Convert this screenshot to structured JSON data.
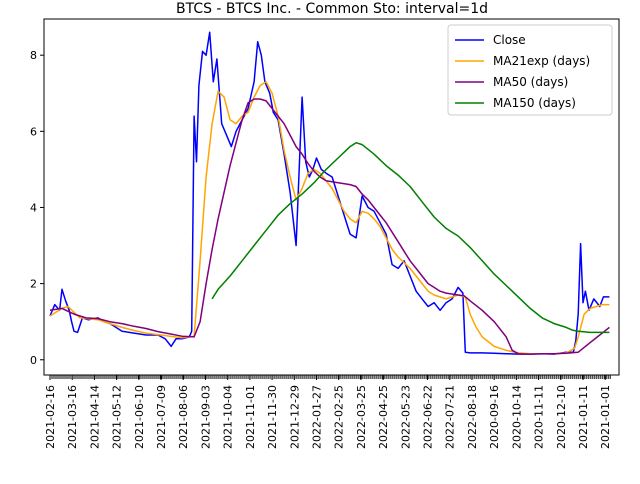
{
  "chart_data": {
    "type": "line",
    "title": "BTCS - BTCS Inc. - Common Sto: interval=1d",
    "xlabel": "",
    "ylabel": "",
    "ylim": [
      -0.4,
      8.95
    ],
    "yticks": [
      0,
      2,
      4,
      6,
      8
    ],
    "grid": false,
    "legend_position": "top-right",
    "x_tick_labels": [
      "2021-02-16",
      "2021-03-16",
      "2021-04-14",
      "2021-05-12",
      "2021-06-10",
      "2021-07-09",
      "2021-08-06",
      "2021-09-03",
      "2021-10-04",
      "2021-11-01",
      "2021-11-30",
      "2021-12-29",
      "2022-01-27",
      "2022-02-25",
      "2022-03-25",
      "2022-04-25",
      "2022-05-23",
      "2022-06-22",
      "2022-07-21",
      "2022-08-18",
      "2020-09-16",
      "2020-10-14",
      "2020-11-11",
      "2020-12-10",
      "2021-01-11",
      "2021-01-01"
    ],
    "series": [
      {
        "name": "Close",
        "color": "#0000ff",
        "points": [
          [
            0,
            1.15
          ],
          [
            0.4,
            1.45
          ],
          [
            0.8,
            1.3
          ],
          [
            1.0,
            1.85
          ],
          [
            1.3,
            1.55
          ],
          [
            1.6,
            1.3
          ],
          [
            1.8,
            1.0
          ],
          [
            2.0,
            0.75
          ],
          [
            2.3,
            0.72
          ],
          [
            2.7,
            1.1
          ],
          [
            3.2,
            1.05
          ],
          [
            4,
            1.1
          ],
          [
            4.5,
            1.0
          ],
          [
            5,
            0.95
          ],
          [
            5.5,
            0.85
          ],
          [
            6,
            0.75
          ],
          [
            7,
            0.7
          ],
          [
            8,
            0.65
          ],
          [
            9,
            0.65
          ],
          [
            9.6,
            0.55
          ],
          [
            10.1,
            0.35
          ],
          [
            10.5,
            0.55
          ],
          [
            11,
            0.55
          ],
          [
            11.6,
            0.6
          ],
          [
            11.8,
            0.75
          ],
          [
            12.0,
            6.4
          ],
          [
            12.2,
            5.2
          ],
          [
            12.4,
            7.2
          ],
          [
            12.7,
            8.1
          ],
          [
            13.0,
            8.0
          ],
          [
            13.3,
            8.6
          ],
          [
            13.6,
            7.3
          ],
          [
            13.9,
            7.9
          ],
          [
            14.3,
            6.2
          ],
          [
            14.7,
            5.9
          ],
          [
            15.1,
            5.6
          ],
          [
            15.5,
            6.0
          ],
          [
            16.0,
            6.3
          ],
          [
            16.5,
            6.6
          ],
          [
            17.0,
            7.3
          ],
          [
            17.3,
            8.35
          ],
          [
            17.6,
            8.0
          ],
          [
            17.9,
            7.3
          ],
          [
            18.3,
            7.0
          ],
          [
            18.6,
            6.5
          ],
          [
            19.0,
            6.3
          ],
          [
            19.5,
            5.4
          ],
          [
            20.0,
            4.4
          ],
          [
            20.5,
            3.0
          ],
          [
            21.0,
            6.9
          ],
          [
            21.3,
            5.2
          ],
          [
            21.6,
            4.8
          ],
          [
            21.9,
            5.0
          ],
          [
            22.2,
            5.3
          ],
          [
            22.6,
            5.0
          ],
          [
            23.0,
            4.9
          ],
          [
            23.5,
            4.8
          ],
          [
            24.0,
            4.3
          ],
          [
            24.5,
            3.8
          ],
          [
            25.0,
            3.3
          ],
          [
            25.5,
            3.2
          ],
          [
            26.0,
            4.3
          ],
          [
            26.5,
            4.0
          ],
          [
            27.0,
            3.9
          ],
          [
            27.5,
            3.6
          ],
          [
            28.0,
            3.3
          ],
          [
            28.5,
            2.5
          ],
          [
            29.0,
            2.4
          ],
          [
            29.5,
            2.6
          ],
          [
            30.0,
            2.2
          ],
          [
            30.5,
            1.8
          ],
          [
            31.0,
            1.6
          ],
          [
            31.5,
            1.4
          ],
          [
            32.0,
            1.5
          ],
          [
            32.5,
            1.3
          ],
          [
            33.0,
            1.5
          ],
          [
            33.5,
            1.6
          ],
          [
            34.0,
            1.9
          ],
          [
            34.4,
            1.75
          ],
          [
            34.6,
            0.2
          ],
          [
            35.0,
            0.18
          ],
          [
            36,
            0.18
          ],
          [
            37,
            0.17
          ],
          [
            38,
            0.16
          ],
          [
            39,
            0.15
          ],
          [
            40,
            0.15
          ],
          [
            41,
            0.16
          ],
          [
            42,
            0.15
          ],
          [
            43,
            0.2
          ],
          [
            43.6,
            0.2
          ],
          [
            43.8,
            0.5
          ],
          [
            44.0,
            1.2
          ],
          [
            44.2,
            3.05
          ],
          [
            44.4,
            1.5
          ],
          [
            44.6,
            1.8
          ],
          [
            44.9,
            1.3
          ],
          [
            45.3,
            1.6
          ],
          [
            45.8,
            1.4
          ],
          [
            46.1,
            1.65
          ],
          [
            46.6,
            1.65
          ]
        ]
      },
      {
        "name": "MA21exp (days)",
        "color": "#ffa500",
        "points": [
          [
            0,
            1.15
          ],
          [
            1.0,
            1.35
          ],
          [
            1.5,
            1.4
          ],
          [
            2.5,
            1.1
          ],
          [
            4,
            1.05
          ],
          [
            5,
            0.95
          ],
          [
            6,
            0.85
          ],
          [
            7,
            0.77
          ],
          [
            8,
            0.7
          ],
          [
            9,
            0.66
          ],
          [
            10,
            0.62
          ],
          [
            11,
            0.58
          ],
          [
            12,
            0.62
          ],
          [
            12.5,
            2.6
          ],
          [
            13.0,
            4.8
          ],
          [
            13.5,
            6.2
          ],
          [
            14.0,
            7.05
          ],
          [
            14.5,
            6.9
          ],
          [
            15.0,
            6.3
          ],
          [
            15.5,
            6.2
          ],
          [
            16.0,
            6.4
          ],
          [
            16.5,
            6.5
          ],
          [
            17.0,
            6.9
          ],
          [
            17.5,
            7.2
          ],
          [
            18.0,
            7.3
          ],
          [
            18.5,
            7.0
          ],
          [
            19.0,
            6.4
          ],
          [
            19.5,
            5.5
          ],
          [
            20.0,
            4.8
          ],
          [
            20.5,
            4.2
          ],
          [
            21.0,
            4.5
          ],
          [
            21.5,
            4.9
          ],
          [
            22.0,
            5.0
          ],
          [
            22.5,
            4.9
          ],
          [
            23.0,
            4.7
          ],
          [
            23.5,
            4.5
          ],
          [
            24.0,
            4.2
          ],
          [
            24.5,
            3.9
          ],
          [
            25.0,
            3.7
          ],
          [
            25.5,
            3.6
          ],
          [
            26.0,
            3.9
          ],
          [
            26.5,
            3.85
          ],
          [
            27.0,
            3.7
          ],
          [
            27.5,
            3.5
          ],
          [
            28.0,
            3.2
          ],
          [
            28.5,
            2.9
          ],
          [
            29.0,
            2.7
          ],
          [
            29.5,
            2.55
          ],
          [
            30.0,
            2.4
          ],
          [
            30.5,
            2.2
          ],
          [
            31.0,
            2.0
          ],
          [
            31.5,
            1.8
          ],
          [
            32.0,
            1.7
          ],
          [
            33.0,
            1.6
          ],
          [
            34.0,
            1.7
          ],
          [
            34.6,
            1.65
          ],
          [
            35.0,
            1.2
          ],
          [
            35.5,
            0.85
          ],
          [
            36.0,
            0.6
          ],
          [
            37.0,
            0.35
          ],
          [
            38.0,
            0.25
          ],
          [
            39.0,
            0.18
          ],
          [
            40.0,
            0.16
          ],
          [
            41.0,
            0.16
          ],
          [
            42.0,
            0.16
          ],
          [
            43.0,
            0.18
          ],
          [
            43.7,
            0.3
          ],
          [
            44.0,
            0.6
          ],
          [
            44.5,
            1.2
          ],
          [
            45.0,
            1.35
          ],
          [
            45.5,
            1.4
          ],
          [
            46.0,
            1.45
          ],
          [
            46.6,
            1.45
          ]
        ]
      },
      {
        "name": "MA50 (days)",
        "color": "#800080",
        "points": [
          [
            0,
            1.3
          ],
          [
            1,
            1.35
          ],
          [
            2,
            1.2
          ],
          [
            3,
            1.1
          ],
          [
            4,
            1.08
          ],
          [
            5,
            1.0
          ],
          [
            6,
            0.95
          ],
          [
            7,
            0.88
          ],
          [
            8,
            0.82
          ],
          [
            9,
            0.74
          ],
          [
            10,
            0.68
          ],
          [
            11,
            0.62
          ],
          [
            12,
            0.6
          ],
          [
            12.5,
            1.0
          ],
          [
            13,
            2.0
          ],
          [
            13.5,
            2.9
          ],
          [
            14,
            3.7
          ],
          [
            14.5,
            4.4
          ],
          [
            15,
            5.1
          ],
          [
            15.5,
            5.7
          ],
          [
            16,
            6.3
          ],
          [
            16.5,
            6.75
          ],
          [
            17,
            6.85
          ],
          [
            17.5,
            6.85
          ],
          [
            18,
            6.8
          ],
          [
            18.5,
            6.6
          ],
          [
            19,
            6.4
          ],
          [
            19.5,
            6.2
          ],
          [
            20,
            5.9
          ],
          [
            20.5,
            5.6
          ],
          [
            21,
            5.4
          ],
          [
            21.5,
            5.15
          ],
          [
            22,
            4.95
          ],
          [
            22.5,
            4.8
          ],
          [
            23,
            4.7
          ],
          [
            24,
            4.65
          ],
          [
            25,
            4.6
          ],
          [
            25.5,
            4.55
          ],
          [
            26,
            4.35
          ],
          [
            26.5,
            4.2
          ],
          [
            27,
            4.0
          ],
          [
            27.5,
            3.8
          ],
          [
            28,
            3.6
          ],
          [
            28.5,
            3.35
          ],
          [
            29,
            3.1
          ],
          [
            29.5,
            2.85
          ],
          [
            30,
            2.6
          ],
          [
            30.5,
            2.4
          ],
          [
            31,
            2.2
          ],
          [
            31.5,
            2.0
          ],
          [
            32,
            1.9
          ],
          [
            32.5,
            1.8
          ],
          [
            33,
            1.75
          ],
          [
            34,
            1.7
          ],
          [
            34.5,
            1.68
          ],
          [
            35,
            1.55
          ],
          [
            36,
            1.3
          ],
          [
            37,
            1.0
          ],
          [
            38,
            0.6
          ],
          [
            38.5,
            0.25
          ],
          [
            39,
            0.16
          ],
          [
            40,
            0.15
          ],
          [
            41,
            0.16
          ],
          [
            42,
            0.16
          ],
          [
            43,
            0.17
          ],
          [
            44,
            0.2
          ],
          [
            45,
            0.45
          ],
          [
            45.6,
            0.6
          ],
          [
            46.2,
            0.75
          ],
          [
            46.6,
            0.85
          ]
        ]
      },
      {
        "name": "MA150 (days)",
        "color": "#008000",
        "points": [
          [
            13.5,
            1.6
          ],
          [
            14,
            1.85
          ],
          [
            15,
            2.2
          ],
          [
            16,
            2.6
          ],
          [
            17,
            3.0
          ],
          [
            18,
            3.4
          ],
          [
            19,
            3.8
          ],
          [
            20,
            4.1
          ],
          [
            21,
            4.35
          ],
          [
            22,
            4.65
          ],
          [
            23,
            5.0
          ],
          [
            24,
            5.3
          ],
          [
            24.5,
            5.45
          ],
          [
            25,
            5.6
          ],
          [
            25.5,
            5.7
          ],
          [
            26,
            5.65
          ],
          [
            27,
            5.4
          ],
          [
            28,
            5.1
          ],
          [
            29,
            4.85
          ],
          [
            30,
            4.55
          ],
          [
            31,
            4.15
          ],
          [
            32,
            3.75
          ],
          [
            33,
            3.45
          ],
          [
            33.5,
            3.35
          ],
          [
            34,
            3.25
          ],
          [
            35,
            2.95
          ],
          [
            36,
            2.6
          ],
          [
            37,
            2.25
          ],
          [
            38,
            1.95
          ],
          [
            39,
            1.65
          ],
          [
            40,
            1.35
          ],
          [
            41,
            1.1
          ],
          [
            42,
            0.95
          ],
          [
            43,
            0.85
          ],
          [
            43.5,
            0.78
          ],
          [
            44,
            0.75
          ],
          [
            45,
            0.72
          ],
          [
            46,
            0.72
          ],
          [
            46.6,
            0.72
          ]
        ]
      }
    ]
  }
}
